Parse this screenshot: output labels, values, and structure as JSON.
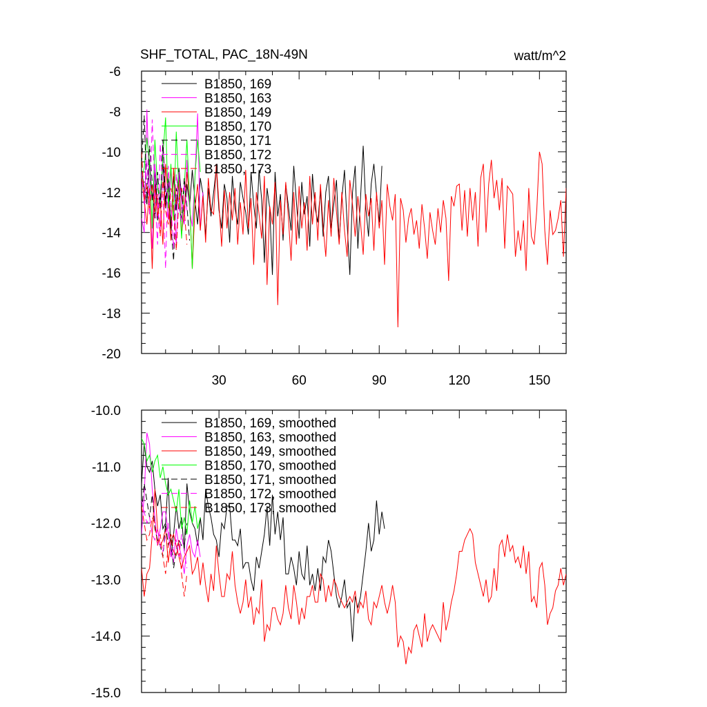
{
  "chart_data": [
    {
      "type": "line",
      "title": "SHF_TOTAL, PAC_18N-49N",
      "units": "watt/m^2",
      "xlim": [
        1,
        160
      ],
      "ylim": [
        -20,
        -6
      ],
      "x_ticks": [
        30,
        60,
        90,
        120,
        150
      ],
      "x_tick_labels": [
        "30",
        "60",
        "90",
        "120",
        "150"
      ],
      "y_ticks": [
        -6,
        -8,
        -10,
        -12,
        -14,
        -16,
        -18,
        -20
      ],
      "y_tick_labels": [
        "-6",
        "-8",
        "-10",
        "-12",
        "-14",
        "-16",
        "-18",
        "-20"
      ],
      "grid": false,
      "legend_position": "top-left",
      "series": [
        {
          "name": "B1850, 169",
          "color": "#000000",
          "dash": "solid",
          "values": [
            -10.9,
            -11.8,
            -12.6,
            -10.4,
            -12.4,
            -11.0,
            -13.4,
            -12.2,
            -10.6,
            -12.8,
            -11.4,
            -13.8,
            -11.2,
            -12.9,
            -10.8,
            -12.2,
            -13.1,
            -11.6,
            -12.7,
            -10.9,
            -12.4,
            -13.6,
            -11.3,
            -12.1,
            -14.2,
            -11.8,
            -13.2,
            -12.0,
            -10.8,
            -12.9,
            -13.8,
            -11.6,
            -12.3,
            -14.5,
            -11.2,
            -12.8,
            -13.6,
            -11.5,
            -12.3,
            -13.0,
            -14.1,
            -11.0,
            -12.6,
            -13.8,
            -10.9,
            -12.4,
            -15.5,
            -11.8,
            -12.8,
            -16.1,
            -11.0,
            -13.2,
            -12.1,
            -14.4,
            -11.6,
            -12.7,
            -13.9,
            -10.7,
            -12.5,
            -14.3,
            -11.5,
            -13.1,
            -12.2,
            -14.7,
            -11.1,
            -12.8,
            -13.5,
            -11.9,
            -14.2,
            -12.0,
            -11.2,
            -13.8,
            -12.6,
            -11.4,
            -14.5,
            -12.3,
            -10.9,
            -13.6,
            -16.1,
            -12.0,
            -10.7,
            -14.8,
            -12.3,
            -9.7,
            -12.8,
            -14.2,
            -11.6,
            -10.6,
            -12.1,
            -13.5,
            -10.7
          ]
        },
        {
          "name": "B1850, 163",
          "color": "#ff00ff",
          "dash": "solid",
          "values": [
            -13.3,
            -14.0,
            -7.9,
            -12.1,
            -14.8,
            -10.6,
            -12.6,
            -13.9,
            -9.6,
            -11.8,
            -13.4,
            -10.9,
            -12.2,
            -14.6,
            -11.0,
            -12.8,
            -13.6,
            -10.4,
            -12.9,
            -13.7,
            -11.3,
            -8.1,
            -13.9,
            -12.0
          ]
        },
        {
          "name": "B1850, 149",
          "color": "#ff0000",
          "dash": "solid",
          "values": [
            -11.2,
            -12.4,
            -13.6,
            -11.8,
            -15.8,
            -11.6,
            -13.2,
            -12.4,
            -14.6,
            -10.6,
            -12.3,
            -14.4,
            -10.8,
            -12.6,
            -11.4,
            -14.1,
            -12.9,
            -11.0,
            -12.3,
            -15.8,
            -12.8,
            -11.6,
            -13.9,
            -12.2,
            -14.5,
            -11.3,
            -12.9,
            -13.1,
            -10.6,
            -12.6,
            -14.7,
            -11.9,
            -13.8,
            -12.0,
            -13.4,
            -11.8,
            -14.6,
            -12.5,
            -14.1,
            -10.9,
            -13.8,
            -12.3,
            -15.6,
            -12.0,
            -13.1,
            -14.3,
            -11.2,
            -16.6,
            -12.7,
            -13.6,
            -11.5,
            -17.6,
            -12.4,
            -14.1,
            -11.5,
            -13.3,
            -15.4,
            -12.0,
            -14.6,
            -11.7,
            -13.8,
            -12.5,
            -14.9,
            -11.2,
            -13.6,
            -12.0,
            -14.4,
            -11.6,
            -13.7,
            -15.2,
            -12.4,
            -14.2,
            -11.3,
            -13.0,
            -14.6,
            -12.0,
            -13.9,
            -15.2,
            -11.4,
            -12.6,
            -14.2,
            -12.2,
            -13.5,
            -15.1,
            -12.1,
            -13.2,
            -12.3,
            -14.9,
            -12.0,
            -13.8,
            -12.4,
            -15.6,
            -11.6,
            -12.7,
            -13.4,
            -12.1,
            -18.7,
            -12.3,
            -12.9,
            -14.5,
            -13.3,
            -12.8,
            -14.1,
            -13.4,
            -14.8,
            -12.6,
            -13.8,
            -15.3,
            -13.0,
            -13.9,
            -14.6,
            -12.8,
            -14.0,
            -12.4,
            -13.3,
            -16.4,
            -12.2,
            -12.7,
            -11.7,
            -11.6,
            -13.9,
            -11.9,
            -14.2,
            -11.8,
            -13.4,
            -12.0,
            -14.7,
            -11.3,
            -10.6,
            -14.0,
            -11.6,
            -10.4,
            -12.3,
            -11.4,
            -12.9,
            -11.3,
            -14.8,
            -11.7,
            -11.9,
            -12.1,
            -15.2,
            -13.9,
            -14.9,
            -13.4,
            -15.9,
            -11.8,
            -14.2,
            -14.6,
            -12.9,
            -10.0,
            -10.6,
            -13.9,
            -15.6,
            -12.9,
            -14.1,
            -13.9,
            -13.3,
            -12.4,
            -15.2,
            -11.8,
            -12.2,
            -16.5,
            -12.3,
            -13.9,
            -17.4,
            -12.1,
            -13.6,
            -11.3,
            -14.2,
            -13.8
          ]
        },
        {
          "name": "B1850, 170",
          "color": "#00ff00",
          "dash": "solid",
          "values": [
            -11.3,
            -10.8,
            -9.3,
            -10.6,
            -13.8,
            -9.4,
            -11.8,
            -12.6,
            -10.2,
            -8.3,
            -12.8,
            -10.6,
            -13.4,
            -9.0,
            -11.9,
            -14.3,
            -11.7,
            -9.4,
            -12.4,
            -15.8,
            -11.2,
            -9.4,
            -11.0
          ]
        },
        {
          "name": "B1850, 171",
          "color": "#000000",
          "dash": "dashed",
          "values": [
            -10.6,
            -8.2,
            -12.3,
            -9.7,
            -11.5,
            -13.3,
            -11.0,
            -12.8,
            -9.4,
            -12.5,
            -11.3,
            -13.6,
            -15.4,
            -11.8,
            -12.7,
            -13.3,
            -11.3,
            -12.7,
            -14.4
          ]
        },
        {
          "name": "B1850, 172",
          "color": "#ff00ff",
          "dash": "dashed",
          "values": [
            -11.0,
            -12.6,
            -10.4,
            -13.1,
            -8.4,
            -12.2,
            -14.6,
            -9.6,
            -11.8,
            -15.8,
            -10.7,
            -12.6,
            -14.8,
            -11.1,
            -12.7,
            -13.5,
            -11.6,
            -12.9
          ]
        },
        {
          "name": "B1850, 173",
          "color": "#ff0000",
          "dash": "dashed",
          "values": [
            -10.0,
            -12.4,
            -11.6,
            -12.8,
            -11.6,
            -13.0,
            -12.1,
            -14.2,
            -11.4,
            -12.9,
            -13.6,
            -11.8,
            -12.6,
            -14.9,
            -12.4,
            -11.8,
            -12.9,
            -14.6
          ]
        }
      ]
    },
    {
      "type": "line",
      "xlim": [
        1,
        160
      ],
      "ylim": [
        -15.0,
        -10.0
      ],
      "x_ticks": [
        30,
        60,
        90,
        120,
        150
      ],
      "y_ticks": [
        -10.0,
        -11.0,
        -12.0,
        -13.0,
        -14.0,
        -15.0
      ],
      "y_tick_labels": [
        "-10.0",
        "-11.0",
        "-12.0",
        "-13.0",
        "-14.0",
        "-15.0"
      ],
      "grid": false,
      "legend_position": "top-left",
      "series": [
        {
          "name": "B1850, 169, smoothed",
          "color": "#000000",
          "dash": "solid",
          "values": [
            -11.3,
            -10.6,
            -11.0,
            -11.1,
            -10.9,
            -11.4,
            -11.7,
            -11.5,
            -12.1,
            -12.0,
            -11.2,
            -12.6,
            -12.2,
            -11.7,
            -12.1,
            -11.9,
            -12.5,
            -11.3,
            -11.8,
            -12.0,
            -12.1,
            -12.4,
            -11.9,
            -12.3,
            -11.4,
            -11.7,
            -11.9,
            -12.2,
            -12.3,
            -12.6,
            -12.0,
            -12.1,
            -11.7,
            -11.7,
            -12.3,
            -12.3,
            -12.4,
            -12.1,
            -12.8,
            -12.7,
            -12.7,
            -13.0,
            -13.2,
            -12.6,
            -12.8,
            -12.5,
            -12.2,
            -11.7,
            -12.4,
            -11.5,
            -12.2,
            -11.8,
            -12.3,
            -11.9,
            -12.9,
            -12.9,
            -12.6,
            -12.8,
            -13.1,
            -12.5,
            -12.9,
            -13.0,
            -12.4,
            -13.1,
            -12.9,
            -13.2,
            -12.8,
            -13.2,
            -12.6,
            -12.7,
            -12.3,
            -12.5,
            -12.9,
            -13.3,
            -13.5,
            -13.3,
            -13.0,
            -13.5,
            -13.4,
            -14.1,
            -13.3,
            -13.5,
            -13.3,
            -12.9,
            -12.5,
            -12.0,
            -12.5,
            -12.3,
            -11.6,
            -12.2,
            -11.8,
            -12.1
          ]
        },
        {
          "name": "B1850, 163, smoothed",
          "color": "#ff00ff",
          "dash": "solid",
          "values": [
            -12.2,
            -11.5,
            -10.4,
            -10.6,
            -11.4,
            -11.9,
            -12.4,
            -12.1,
            -11.8,
            -11.8,
            -12.2,
            -12.5,
            -12.7,
            -12.1,
            -12.4,
            -12.6,
            -12.9,
            -12.4,
            -12.2,
            -12.5,
            -12.6,
            -12.3,
            -12.6
          ]
        },
        {
          "name": "B1850, 149, smoothed",
          "color": "#ff0000",
          "dash": "solid",
          "values": [
            -12.8,
            -13.3,
            -12.9,
            -12.8,
            -12.2,
            -11.4,
            -12.1,
            -12.4,
            -12.3,
            -12.1,
            -12.7,
            -12.3,
            -12.2,
            -12.4,
            -12.6,
            -12.8,
            -12.6,
            -12.5,
            -12.4,
            -12.9,
            -12.8,
            -12.6,
            -13.1,
            -12.7,
            -13.1,
            -13.4,
            -12.9,
            -13.2,
            -12.4,
            -12.9,
            -13.3,
            -13.3,
            -12.9,
            -13.0,
            -12.5,
            -13.1,
            -13.4,
            -13.6,
            -13.4,
            -13.0,
            -13.5,
            -13.3,
            -13.8,
            -13.5,
            -13.6,
            -13.0,
            -14.1,
            -13.8,
            -13.9,
            -13.5,
            -13.5,
            -13.7,
            -13.8,
            -13.6,
            -13.1,
            -13.5,
            -13.7,
            -13.1,
            -13.4,
            -13.8,
            -13.5,
            -13.7,
            -13.3,
            -13.3,
            -13.1,
            -13.4,
            -13.4,
            -12.9,
            -13.0,
            -13.4,
            -13.1,
            -13.3,
            -13.0,
            -13.1,
            -13.3,
            -13.4,
            -13.5,
            -13.4,
            -13.3,
            -13.4,
            -13.2,
            -13.6,
            -13.4,
            -13.5,
            -13.2,
            -13.7,
            -13.8,
            -13.4,
            -13.5,
            -13.3,
            -13.1,
            -13.4,
            -13.6,
            -13.4,
            -13.1,
            -13.4,
            -14.2,
            -14.0,
            -14.1,
            -14.5,
            -14.2,
            -14.3,
            -13.9,
            -13.8,
            -14.0,
            -14.2,
            -13.6,
            -14.1,
            -13.9,
            -13.8,
            -13.9,
            -14.0,
            -14.1,
            -13.4,
            -13.9,
            -13.7,
            -13.4,
            -13.2,
            -12.9,
            -12.5,
            -12.5,
            -12.3,
            -12.2,
            -12.1,
            -12.2,
            -12.7,
            -12.9,
            -13.1,
            -13.3,
            -13.0,
            -13.4,
            -13.3,
            -12.8,
            -13.2,
            -12.4,
            -12.3,
            -12.6,
            -12.2,
            -12.5,
            -12.4,
            -12.7,
            -12.6,
            -12.8,
            -12.4,
            -12.9,
            -12.5,
            -13.4,
            -13.3,
            -13.5,
            -12.8,
            -12.7,
            -13.1,
            -13.8,
            -13.6,
            -13.5,
            -13.2,
            -13.1,
            -12.8,
            -13.1,
            -12.9,
            -13.2,
            -13.6,
            -14.0,
            -14.2,
            -14.0,
            -14.2,
            -14.0,
            -13.6,
            -13.5,
            -13.3,
            -13.9,
            -13.6,
            -13.1
          ]
        },
        {
          "name": "B1850, 170, smoothed",
          "color": "#00ff00",
          "dash": "solid",
          "values": [
            -10.5,
            -10.6,
            -10.9,
            -10.8,
            -11.1,
            -10.9,
            -10.8,
            -11.2,
            -11.0,
            -11.3,
            -11.5,
            -11.4,
            -11.6,
            -11.8,
            -11.4,
            -12.1,
            -11.9,
            -12.2,
            -11.6,
            -12.0,
            -11.7,
            -12.1,
            -11.9
          ]
        },
        {
          "name": "B1850, 171, smoothed",
          "color": "#000000",
          "dash": "dashed",
          "values": [
            -11.8,
            -11.3,
            -11.6,
            -11.9,
            -11.5,
            -12.1,
            -12.3,
            -12.4,
            -12.6,
            -12.0,
            -12.4,
            -12.2,
            -12.8,
            -12.5,
            -12.3,
            -12.4,
            -12.4,
            -12.0
          ]
        },
        {
          "name": "B1850, 172, smoothed",
          "color": "#ff00ff",
          "dash": "dashed",
          "values": [
            -11.6,
            -11.8,
            -12.0,
            -11.9,
            -12.2,
            -12.3,
            -12.1,
            -12.4,
            -12.5,
            -12.2,
            -12.0,
            -12.6,
            -12.4,
            -12.3,
            -12.6,
            -12.2,
            -12.5,
            -12.8
          ]
        },
        {
          "name": "B1850, 173, smoothed",
          "color": "#ff0000",
          "dash": "dashed",
          "values": [
            -11.7,
            -12.0,
            -12.3,
            -12.2,
            -11.9,
            -12.0,
            -12.4,
            -12.2,
            -12.6,
            -12.9,
            -12.4,
            -12.2,
            -12.5,
            -12.6,
            -12.3,
            -12.9,
            -13.3,
            -12.9
          ]
        }
      ]
    }
  ]
}
